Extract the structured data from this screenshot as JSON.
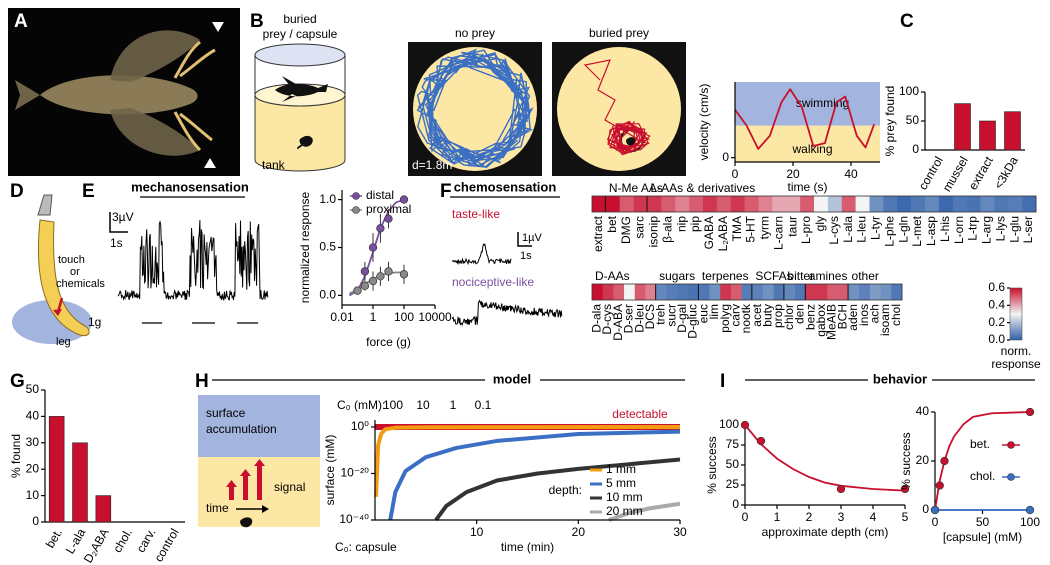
{
  "panel_labels": [
    "A",
    "B",
    "C",
    "D",
    "E",
    "F",
    "G",
    "H",
    "I"
  ],
  "B": {
    "caption": [
      "buried",
      "prey / capsule"
    ],
    "tank": "tank",
    "no_prey": "no prey",
    "buried_prey": "buried prey",
    "scale": "d=1.8m"
  },
  "D": {
    "stimulus": [
      "touch",
      "or",
      "chemicals"
    ],
    "leg": "leg"
  },
  "E": {
    "title": "mechanosensation",
    "scale_v": "3µV",
    "scale_t": "1s",
    "stimulus": "1g"
  },
  "F": {
    "title": "chemosensation",
    "taste": "taste-like",
    "nociceptive": "nociceptive-like",
    "scale_v": "1µV",
    "scale_t": "1s"
  },
  "H": {
    "title": "model",
    "surface": [
      "surface",
      "accumulation"
    ],
    "signal": "signal",
    "time": "time"
  },
  "I": {
    "title": "behavior"
  },
  "chart_data": [
    {
      "type": "line",
      "xlabel": "time (s)",
      "ylabel": "velocity (cm/s)",
      "xlim": [
        0,
        50
      ],
      "ylim": [
        -0.03,
        0.52
      ],
      "xticks": [
        0,
        20,
        40
      ],
      "yticks": [
        0
      ],
      "threshold": 0.22,
      "annotations": [
        "swimming",
        "walking"
      ],
      "band_colors": [
        "#a3b5de",
        "#fde7a4"
      ],
      "series": [
        {
          "color": "#c8102e",
          "x": [
            0,
            4,
            8,
            12,
            16,
            19,
            23,
            27,
            31,
            35,
            38,
            42,
            45,
            48
          ],
          "values": [
            0.33,
            0.22,
            0.06,
            0.15,
            0.38,
            0.47,
            0.35,
            0.08,
            0.1,
            0.38,
            0.42,
            0.15,
            0.07,
            0.23
          ]
        }
      ]
    },
    {
      "type": "bar",
      "ylabel": "% prey found",
      "categories": [
        "control",
        "mussel",
        "extract",
        "<3kDa"
      ],
      "values": [
        0,
        80,
        50,
        66
      ],
      "color": "#c8102e",
      "ylim": [
        0,
        100
      ],
      "yticks": [
        0,
        50,
        100
      ]
    },
    {
      "type": "scatter",
      "xlabel": "force (g)",
      "ylabel": "normalized response",
      "xlog": true,
      "xlim": [
        0.01,
        10000
      ],
      "xticks": [
        0.01,
        1,
        100,
        10000
      ],
      "ylim": [
        -0.1,
        1.1
      ],
      "yticks": [
        {
          "value": 0,
          "label": "0.0"
        },
        0.5,
        {
          "value": 1,
          "label": "1.0"
        }
      ],
      "legend": "upper left",
      "series": [
        {
          "name": "distal",
          "color": "#7b4fa0",
          "x": [
            0.1,
            0.3,
            1,
            3,
            10,
            100
          ],
          "values": [
            0.05,
            0.25,
            0.5,
            0.7,
            0.8,
            1.0
          ],
          "errors": [
            0.03,
            0.1,
            0.15,
            0.15,
            0.1,
            0.02
          ],
          "fit_x": [
            0.03,
            0.1,
            0.3,
            1,
            3,
            10,
            30,
            100
          ],
          "fit": [
            0,
            0.05,
            0.2,
            0.45,
            0.7,
            0.88,
            0.97,
            1.0
          ]
        },
        {
          "name": "proximal",
          "color": "#8a8a8a",
          "x": [
            0.1,
            0.3,
            1,
            3,
            10,
            100
          ],
          "values": [
            0.05,
            0.1,
            0.15,
            0.2,
            0.25,
            0.22
          ],
          "errors": [
            0.03,
            0.05,
            0.1,
            0.1,
            0.1,
            0.1
          ],
          "fit_x": [
            0.03,
            0.1,
            0.3,
            1,
            3,
            10,
            30,
            100
          ],
          "fit": [
            0.02,
            0.06,
            0.12,
            0.17,
            0.21,
            0.23,
            0.24,
            0.24
          ]
        }
      ]
    },
    {
      "type": "heatmap",
      "clim": [
        0,
        0.6
      ],
      "colormap": [
        "#2f5fa8",
        "#f4f4f4",
        "#c8102e"
      ],
      "cticks": [
        {
          "value": 0,
          "label": "0.0"
        },
        0.2,
        0.4,
        0.6
      ],
      "clabel": [
        "norm.",
        "response"
      ],
      "rows": [
        {
          "groups": [
            {
              "categories": [
                "extract"
              ],
              "values": [
                0.6
              ]
            },
            {
              "name": "N-Me AAs",
              "categories": [
                "bet",
                "DMG",
                "sarc"
              ],
              "values": [
                0.6,
                0.5,
                0.55
              ]
            },
            {
              "name": "L-AAs & derivatives",
              "categories": [
                "isonip",
                "β-ala",
                "nip",
                "pip",
                "GABA",
                "L₂ABA",
                "TMA",
                "5-HT",
                "tyrm",
                "L-carn",
                "taur",
                "L-pro",
                "gly",
                "L-cys",
                "L-ala",
                "L-leu",
                "L-tyr",
                "L-phe",
                "L-gln",
                "L-met",
                "L-asp",
                "L-his",
                "L-orn",
                "L-trp",
                "L-arg",
                "L-lys",
                "L-glu",
                "L-ser"
              ],
              "values": [
                0.55,
                0.5,
                0.45,
                0.5,
                0.55,
                0.5,
                0.55,
                0.5,
                0.45,
                0.4,
                0.4,
                0.5,
                0.3,
                0.2,
                0.5,
                0.3,
                0.1,
                0.05,
                0.02,
                0.05,
                0.08,
                0.02,
                0.05,
                0.04,
                0.08,
                0.05,
                0.06,
                0.03
              ]
            }
          ]
        },
        {
          "groups": [
            {
              "name": "D-AAs",
              "categories": [
                "D-ala",
                "D-cys",
                "D-ABA",
                "D-ser",
                "D-leu",
                "DCS"
              ],
              "values": [
                0.6,
                0.55,
                0.5,
                0.3,
                0.5,
                0.45
              ]
            },
            {
              "name": "sugars",
              "categories": [
                "treh",
                "sucr",
                "D-gal",
                "D-gluc"
              ],
              "values": [
                0.08,
                0.06,
                0.05,
                0.04
              ]
            },
            {
              "name": "terpenes",
              "categories": [
                "euc",
                "lim",
                "polyg",
                "carv",
                "nootk"
              ],
              "values": [
                0.05,
                0.1,
                0.55,
                0.5,
                0.06
              ]
            },
            {
              "name": "SCFAs",
              "categories": [
                "acet",
                "buty",
                "prop"
              ],
              "values": [
                0.07,
                0.1,
                0.05
              ]
            },
            {
              "name": "bitter",
              "categories": [
                "chlor",
                "den"
              ],
              "values": [
                0.08,
                0.05
              ]
            },
            {
              "name": "amines",
              "categories": [
                "benz",
                "gabox",
                "MeAIB",
                "BCH"
              ],
              "values": [
                0.55,
                0.55,
                0.5,
                0.5
              ]
            },
            {
              "name": "other",
              "categories": [
                "aden",
                "inos",
                "ach",
                "isoam",
                "chol"
              ],
              "values": [
                0.1,
                0.07,
                0.12,
                0.1,
                0.05
              ]
            }
          ]
        }
      ]
    },
    {
      "type": "bar",
      "ylabel": "% found",
      "categories": [
        "bet.",
        "L-ala",
        "D₂ABA",
        "chol.",
        "carv.",
        "control"
      ],
      "values": [
        40,
        30,
        10,
        0,
        0,
        0
      ],
      "color": "#c8102e",
      "ylim": [
        0,
        50
      ],
      "yticks": [
        0,
        10,
        20,
        30,
        40,
        50
      ]
    },
    {
      "type": "line",
      "xlabel": "time (min)",
      "ylabel": "surface (mM)",
      "ylog": true,
      "xlim": [
        0,
        30
      ],
      "xticks": [
        10,
        20,
        30
      ],
      "ylim": [
        1e-40,
        1000
      ],
      "yticks": [
        {
          "value": 1,
          "label": "10⁰"
        },
        {
          "value": 1e-20,
          "label": "10⁻²⁰"
        },
        {
          "value": 1e-40,
          "label": "10⁻⁴⁰"
        }
      ],
      "legend": "lower right",
      "legend_title": "depth:",
      "detectable_level": 1,
      "detectable": "detectable",
      "c0_label": "C₀ (mM):",
      "c0": [
        100,
        10,
        1,
        0.1
      ],
      "c0_capsule": "C₀: capsule",
      "series": [
        {
          "name": "1 mm",
          "color": "#f39c12",
          "x": [
            0.1,
            0.3,
            0.6,
            1,
            2,
            5,
            30
          ],
          "values": [
            1e-30,
            1e-08,
            0.001,
            0.1,
            0.5,
            0.8,
            1
          ]
        },
        {
          "name": "5 mm",
          "color": "#3a6fc4",
          "x": [
            1.5,
            2,
            3,
            5,
            8,
            12,
            20,
            30
          ],
          "values": [
            1e-40,
            1e-28,
            1e-19,
            1e-13,
            1e-09,
            1e-06,
            0.001,
            0.01
          ]
        },
        {
          "name": "10 mm",
          "color": "#333333",
          "x": [
            6,
            7,
            9,
            12,
            16,
            20,
            25,
            30
          ],
          "values": [
            1e-40,
            1e-34,
            1e-28,
            1e-23,
            1e-20,
            1e-18,
            1e-16,
            1e-14
          ]
        },
        {
          "name": "20 mm",
          "color": "#aaaaaa",
          "x": [
            23,
            25,
            27,
            30
          ],
          "values": [
            1e-40,
            1e-37,
            1e-35,
            1e-33
          ]
        }
      ]
    },
    {
      "type": "scatter",
      "xlabel": "approximate depth (cm)",
      "ylabel": "% success",
      "xlim": [
        0,
        5
      ],
      "xticks": [
        0,
        1,
        2,
        3,
        4,
        5
      ],
      "ylim": [
        0,
        100
      ],
      "yticks": [
        0,
        25,
        50,
        75,
        100
      ],
      "series": [
        {
          "color": "#c8102e",
          "x": [
            0,
            0.5,
            3,
            5
          ],
          "values": [
            100,
            80,
            20,
            20
          ],
          "fit_x": [
            0,
            0.5,
            1,
            1.5,
            2,
            2.5,
            3,
            4,
            5
          ],
          "fit": [
            100,
            76,
            58,
            45,
            35,
            28,
            24,
            20,
            18
          ]
        }
      ]
    },
    {
      "type": "scatter",
      "xlabel": "[capsule] (mM)",
      "ylabel": "% success",
      "xlim": [
        0,
        100
      ],
      "xticks": [
        0,
        50,
        100
      ],
      "ylim": [
        0,
        40
      ],
      "yticks": [
        0,
        20,
        40
      ],
      "legend": "center right",
      "series": [
        {
          "name": "bet.",
          "color": "#c8102e",
          "x": [
            0,
            5,
            10,
            100
          ],
          "values": [
            0,
            10,
            20,
            40
          ],
          "fit_x": [
            0,
            5,
            10,
            15,
            20,
            30,
            40,
            60,
            100
          ],
          "fit": [
            0,
            12,
            20,
            26,
            30,
            35,
            38,
            39.5,
            40
          ]
        },
        {
          "name": "chol.",
          "color": "#3a6fc4",
          "x": [
            0,
            100
          ],
          "values": [
            0,
            0
          ],
          "fit_x": [
            0,
            100
          ],
          "fit": [
            0,
            0
          ]
        }
      ]
    }
  ]
}
